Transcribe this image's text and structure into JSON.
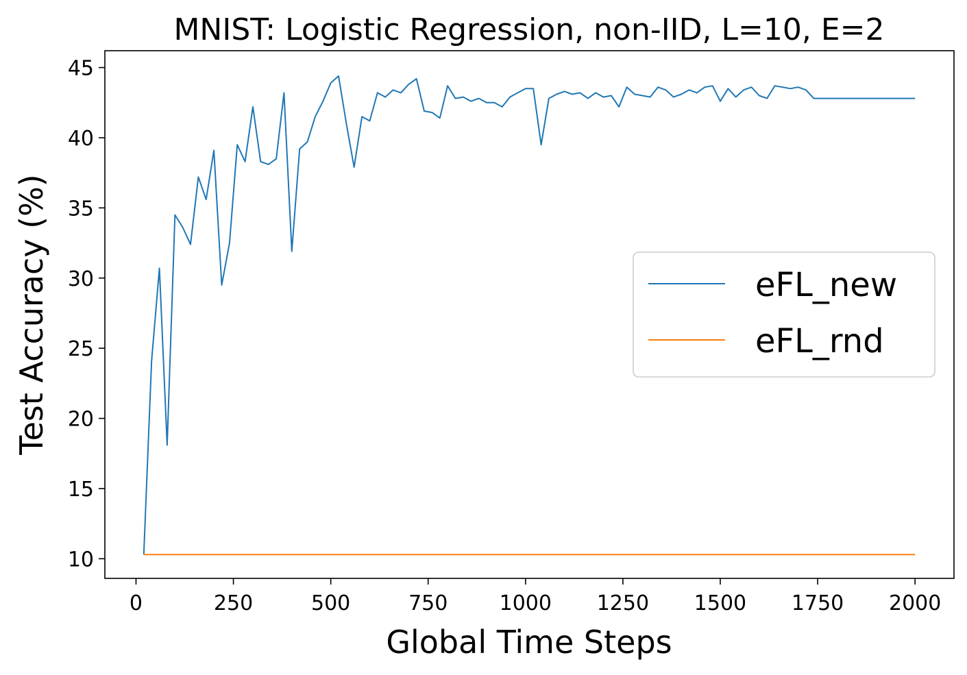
{
  "chart_data": {
    "type": "line",
    "title": "MNIST: Logistic Regression, non-IID, L=10, E=2",
    "xlabel": "Global Time Steps",
    "ylabel": "Test Accuracy (%)",
    "xlim": [
      -80,
      2100
    ],
    "ylim": [
      8.6,
      46.2
    ],
    "xticks": [
      0,
      250,
      500,
      750,
      1000,
      1250,
      1500,
      1750,
      2000
    ],
    "yticks": [
      10,
      15,
      20,
      25,
      30,
      35,
      40,
      45
    ],
    "grid": false,
    "legend_position": "center-right",
    "series": [
      {
        "name": "eFL_new",
        "color": "#1f77b4",
        "x": [
          20,
          40,
          60,
          80,
          100,
          120,
          140,
          160,
          180,
          200,
          220,
          240,
          260,
          280,
          300,
          320,
          340,
          360,
          380,
          400,
          420,
          440,
          460,
          480,
          500,
          520,
          540,
          560,
          580,
          600,
          620,
          640,
          660,
          680,
          700,
          720,
          740,
          760,
          780,
          800,
          820,
          840,
          860,
          880,
          900,
          920,
          940,
          960,
          980,
          1000,
          1020,
          1040,
          1060,
          1080,
          1100,
          1120,
          1140,
          1160,
          1180,
          1200,
          1220,
          1240,
          1260,
          1280,
          1300,
          1320,
          1340,
          1360,
          1380,
          1400,
          1420,
          1440,
          1460,
          1480,
          1500,
          1520,
          1540,
          1560,
          1580,
          1600,
          1620,
          1640,
          1660,
          1680,
          1700,
          1720,
          1740,
          1760,
          1780,
          1800,
          1820,
          1840,
          1860,
          1880,
          1900,
          1920,
          1940,
          1960,
          1980,
          2000
        ],
        "values": [
          10.3,
          24.1,
          30.7,
          18.1,
          34.5,
          33.6,
          32.4,
          37.2,
          35.6,
          39.1,
          29.5,
          32.5,
          39.5,
          38.3,
          42.2,
          38.3,
          38.1,
          38.5,
          43.2,
          31.9,
          39.2,
          39.7,
          41.5,
          42.6,
          43.9,
          44.4,
          41.0,
          37.9,
          41.5,
          41.2,
          43.2,
          42.9,
          43.4,
          43.2,
          43.8,
          44.2,
          41.9,
          41.8,
          41.4,
          43.7,
          42.8,
          42.9,
          42.6,
          42.8,
          42.5,
          42.5,
          42.2,
          42.9,
          43.2,
          43.5,
          43.5,
          39.5,
          42.8,
          43.1,
          43.3,
          43.1,
          43.2,
          42.8,
          43.2,
          42.9,
          43.0,
          42.2,
          43.6,
          43.1,
          43.0,
          42.9,
          43.6,
          43.4,
          42.9,
          43.1,
          43.4,
          43.2,
          43.6,
          43.7,
          42.6,
          43.5,
          42.9,
          43.4,
          43.6,
          43.0,
          42.8,
          43.7,
          43.6,
          43.5,
          43.6,
          43.4,
          42.8,
          42.8,
          42.8,
          42.8,
          42.8,
          42.8,
          42.8,
          42.8,
          42.8,
          42.8,
          42.8,
          42.8,
          42.8,
          42.8
        ]
      },
      {
        "name": "eFL_rnd",
        "color": "#ff7f0e",
        "x": [
          20,
          400,
          800,
          1200,
          1600,
          2000
        ],
        "values": [
          10.3,
          10.3,
          10.3,
          10.3,
          10.3,
          10.3
        ]
      }
    ]
  }
}
